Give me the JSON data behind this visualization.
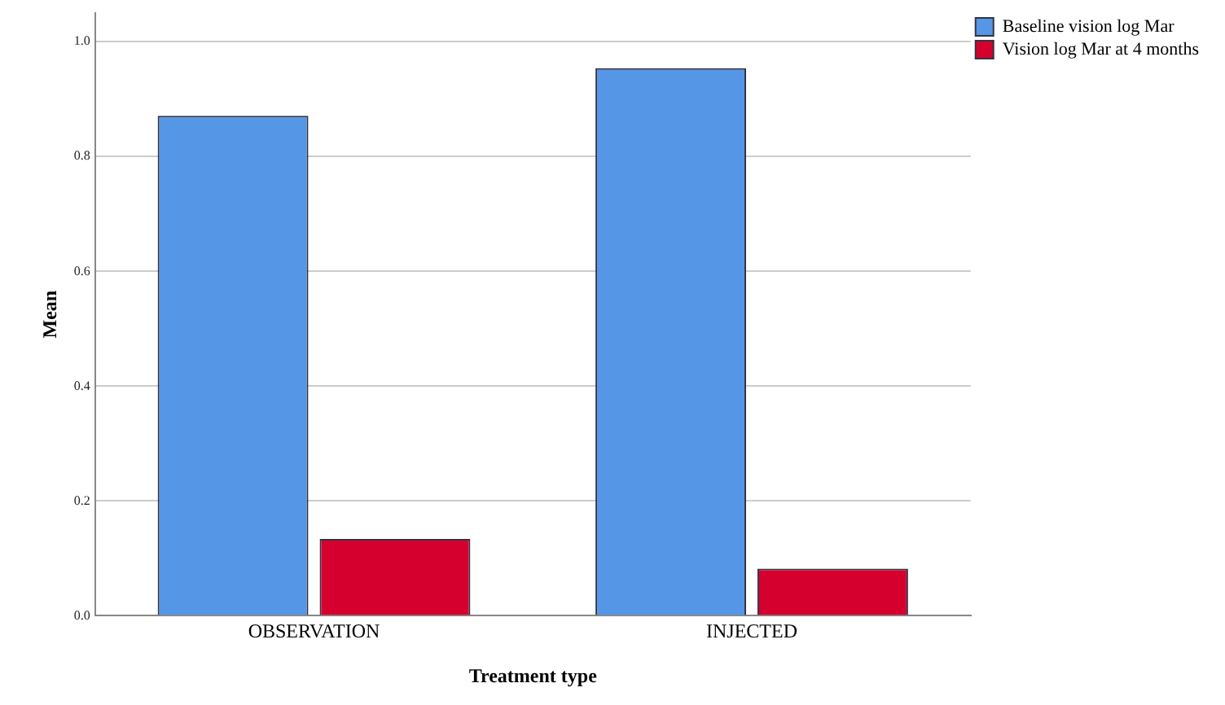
{
  "chart_data": {
    "type": "bar",
    "xlabel": "Treatment type",
    "ylabel": "Mean",
    "categories": [
      "OBSERVATION",
      "INJECTED"
    ],
    "series": [
      {
        "name": "Baseline vision log Mar",
        "color": "#5596e6",
        "values": [
          0.871,
          0.954
        ]
      },
      {
        "name": "Vision log Mar at 4 months",
        "color": "#d5002e",
        "values": [
          0.134,
          0.082
        ]
      }
    ],
    "ylim": [
      0,
      1.05
    ],
    "yticks": [
      {
        "value": 0,
        "label": "0.0"
      },
      {
        "value": 0.2,
        "label": "0.2"
      },
      {
        "value": 0.4,
        "label": "0.4"
      },
      {
        "value": 0.6,
        "label": "0.6"
      },
      {
        "value": 0.8,
        "label": "0.8"
      },
      {
        "value": 1,
        "label": "1.0"
      }
    ],
    "grid": "y",
    "legend": "top right"
  }
}
